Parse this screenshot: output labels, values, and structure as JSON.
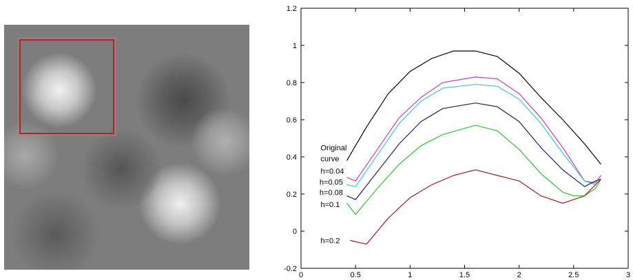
{
  "image_panel": {
    "description_icon": "gaussian-blur-texture",
    "roi_color": "#a52a2a"
  },
  "chart_data": {
    "type": "line",
    "xlim": [
      0,
      3
    ],
    "ylim": [
      -0.2,
      1.2
    ],
    "x_ticks": [
      "0",
      "0.5",
      "1",
      "1.5",
      "2",
      "2.5",
      "3"
    ],
    "y_ticks": [
      "-0.2",
      "0",
      "0.2",
      "0.4",
      "0.6",
      "0.8",
      "1",
      "1.2"
    ],
    "grid": false,
    "series": [
      {
        "name": "Original curve",
        "color": "#000000",
        "points": [
          [
            0.42,
            0.38
          ],
          [
            0.6,
            0.56
          ],
          [
            0.8,
            0.74
          ],
          [
            1.0,
            0.86
          ],
          [
            1.2,
            0.93
          ],
          [
            1.4,
            0.97
          ],
          [
            1.6,
            0.97
          ],
          [
            1.8,
            0.94
          ],
          [
            2.0,
            0.85
          ],
          [
            2.2,
            0.72
          ],
          [
            2.4,
            0.6
          ],
          [
            2.6,
            0.47
          ],
          [
            2.75,
            0.36
          ]
        ]
      },
      {
        "name": "h=0.04",
        "color": "#c040c0",
        "points": [
          [
            0.42,
            0.29
          ],
          [
            0.5,
            0.27
          ],
          [
            0.7,
            0.44
          ],
          [
            0.9,
            0.61
          ],
          [
            1.1,
            0.72
          ],
          [
            1.3,
            0.8
          ],
          [
            1.6,
            0.83
          ],
          [
            1.8,
            0.82
          ],
          [
            2.0,
            0.74
          ],
          [
            2.2,
            0.61
          ],
          [
            2.4,
            0.45
          ],
          [
            2.6,
            0.27
          ],
          [
            2.7,
            0.26
          ],
          [
            2.75,
            0.3
          ]
        ]
      },
      {
        "name": "h=0.05",
        "color": "#3cc8c8",
        "points": [
          [
            0.42,
            0.25
          ],
          [
            0.5,
            0.24
          ],
          [
            0.7,
            0.41
          ],
          [
            0.9,
            0.58
          ],
          [
            1.1,
            0.7
          ],
          [
            1.3,
            0.77
          ],
          [
            1.6,
            0.79
          ],
          [
            1.8,
            0.78
          ],
          [
            2.0,
            0.71
          ],
          [
            2.2,
            0.58
          ],
          [
            2.4,
            0.42
          ],
          [
            2.6,
            0.27
          ],
          [
            2.7,
            0.25
          ],
          [
            2.75,
            0.28
          ]
        ]
      },
      {
        "name": "h=0.08",
        "color": "#202060",
        "points": [
          [
            0.42,
            0.19
          ],
          [
            0.5,
            0.17
          ],
          [
            0.7,
            0.32
          ],
          [
            0.9,
            0.47
          ],
          [
            1.1,
            0.59
          ],
          [
            1.3,
            0.66
          ],
          [
            1.6,
            0.69
          ],
          [
            1.8,
            0.67
          ],
          [
            2.0,
            0.59
          ],
          [
            2.2,
            0.45
          ],
          [
            2.4,
            0.33
          ],
          [
            2.6,
            0.24
          ],
          [
            2.7,
            0.27
          ],
          [
            2.75,
            0.28
          ]
        ]
      },
      {
        "name": "h=0.1",
        "color": "#30c030",
        "points": [
          [
            0.42,
            0.15
          ],
          [
            0.5,
            0.09
          ],
          [
            0.7,
            0.23
          ],
          [
            0.9,
            0.36
          ],
          [
            1.1,
            0.46
          ],
          [
            1.3,
            0.52
          ],
          [
            1.6,
            0.57
          ],
          [
            1.8,
            0.54
          ],
          [
            2.0,
            0.44
          ],
          [
            2.2,
            0.31
          ],
          [
            2.4,
            0.21
          ],
          [
            2.5,
            0.19
          ],
          [
            2.6,
            0.19
          ],
          [
            2.7,
            0.23
          ],
          [
            2.75,
            0.28
          ]
        ]
      },
      {
        "name": "h=0.2",
        "color": "#a02020",
        "points": [
          [
            0.45,
            -0.05
          ],
          [
            0.6,
            -0.07
          ],
          [
            0.8,
            0.07
          ],
          [
            1.0,
            0.18
          ],
          [
            1.2,
            0.25
          ],
          [
            1.4,
            0.3
          ],
          [
            1.6,
            0.33
          ],
          [
            1.8,
            0.3
          ],
          [
            2.0,
            0.27
          ],
          [
            2.2,
            0.19
          ],
          [
            2.4,
            0.15
          ],
          [
            2.5,
            0.17
          ],
          [
            2.6,
            0.19
          ],
          [
            2.7,
            0.25
          ],
          [
            2.75,
            0.28
          ]
        ]
      }
    ],
    "labels": [
      "Original",
      "curve",
      "h=0.04",
      "h=0.05",
      "h=0.08",
      "h=0.1",
      "h=0.2"
    ]
  }
}
